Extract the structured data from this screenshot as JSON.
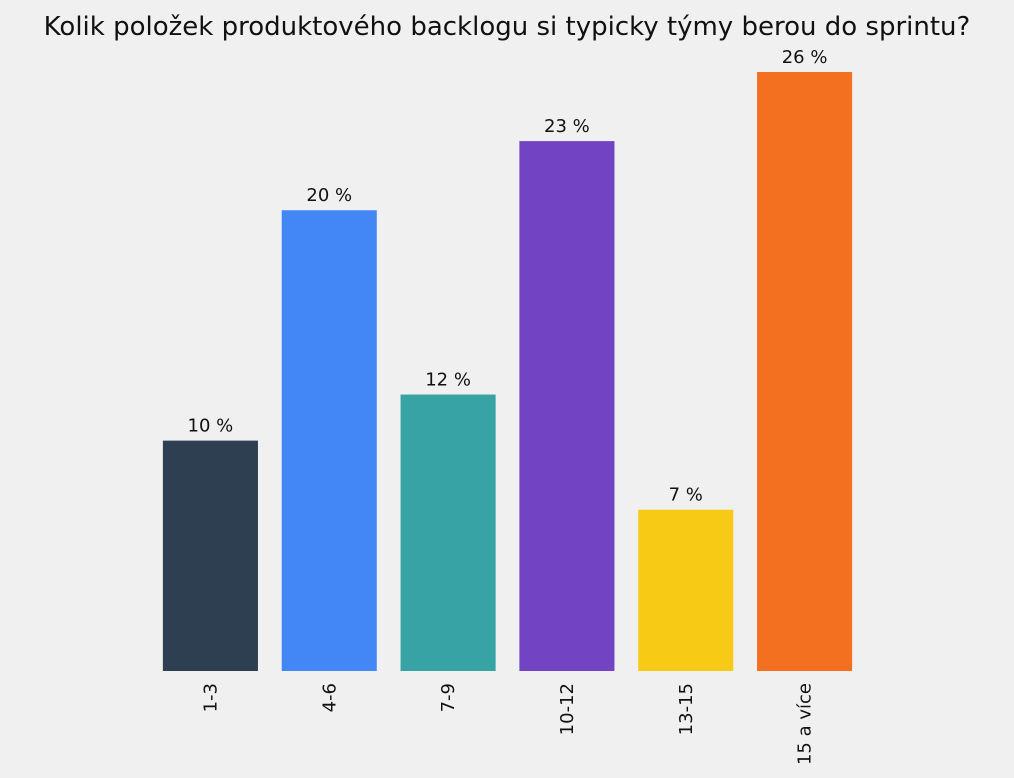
{
  "chart_data": {
    "type": "bar",
    "title": "Kolik položek produktového backlogu si typicky týmy berou do sprintu?",
    "categories": [
      "1-3",
      "4-6",
      "7-9",
      "10-12",
      "13-15",
      "15 a více"
    ],
    "values": [
      10,
      20,
      12,
      23,
      7,
      26
    ],
    "value_labels": [
      "10 %",
      "20 %",
      "12 %",
      "23 %",
      "7 %",
      "26 %"
    ],
    "colors": [
      "#2e3f52",
      "#4287f5",
      "#38a3a5",
      "#7243c2",
      "#f7cb15",
      "#f37020"
    ]
  }
}
